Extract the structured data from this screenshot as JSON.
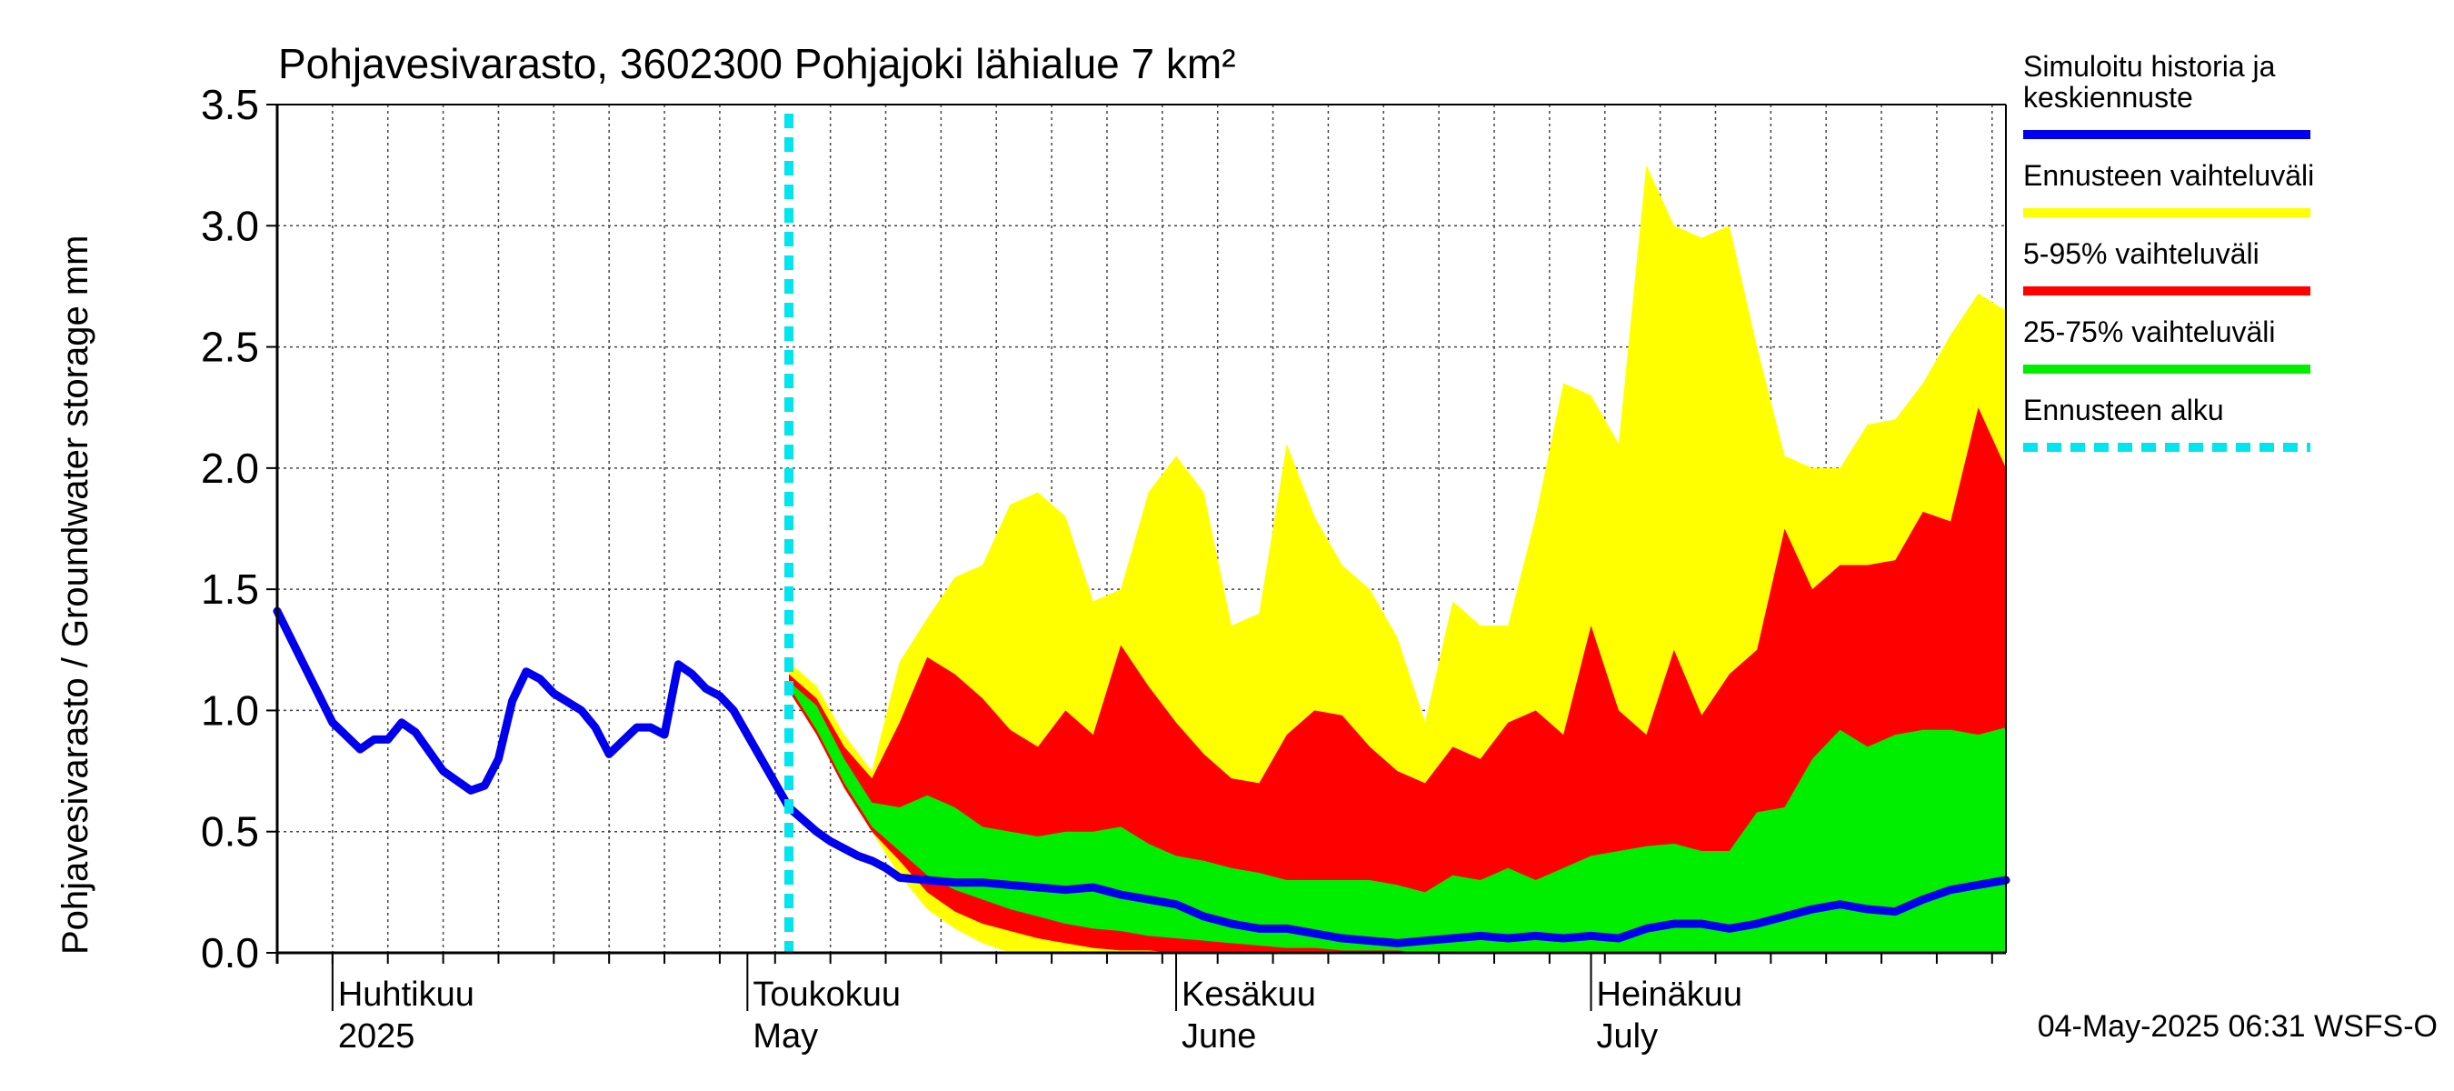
{
  "chart_data": {
    "type": "area",
    "title": "Pohjavesivarasto, 3602300 Pohjajoki lähialue 7 km²",
    "ylabel": "Pohjavesivarasto / Groundwater storage   mm",
    "xlim": [
      "2025-03-28",
      "2025-07-31"
    ],
    "ylim": [
      0,
      3.5
    ],
    "yticks": [
      "0.0",
      "0.5",
      "1.0",
      "1.5",
      "2.0",
      "2.5",
      "3.0",
      "3.5"
    ],
    "month_labels": [
      {
        "fi": "Huhtikuu",
        "en": "2025",
        "date": "2025-04-01"
      },
      {
        "fi": "Toukokuu",
        "en": "May",
        "date": "2025-05-01"
      },
      {
        "fi": "Kesäkuu",
        "en": "June",
        "date": "2025-06-01"
      },
      {
        "fi": "Heinäkuu",
        "en": "July",
        "date": "2025-07-01"
      }
    ],
    "forecast_start": "2025-05-04",
    "grid": true,
    "legend_position": "right",
    "timestamp": "04-May-2025 06:31 WSFS-O",
    "colors": {
      "history": "#0000ee",
      "full_range": "#ffff00",
      "p5_95": "#ff0000",
      "p25_75": "#00ee00",
      "forecast_start": "#00e5ee"
    },
    "legend": [
      {
        "label": "Simuloitu historia ja keskiennuste",
        "lines": [
          "Simuloitu historia ja",
          "keskiennuste"
        ],
        "color": "#0000ee",
        "style": "solid"
      },
      {
        "label": "Ennusteen vaihteluväli",
        "lines": [
          "Ennusteen vaihteluväli"
        ],
        "color": "#ffff00",
        "style": "solid"
      },
      {
        "label": "5-95% vaihteluväli",
        "lines": [
          "5-95% vaihteluväli"
        ],
        "color": "#ff0000",
        "style": "solid"
      },
      {
        "label": "25-75% vaihteluväli",
        "lines": [
          "25-75% vaihteluväli"
        ],
        "color": "#00ee00",
        "style": "solid"
      },
      {
        "label": "Ennusteen alku",
        "lines": [
          "Ennusteen alku"
        ],
        "color": "#00e5ee",
        "style": "dashed"
      }
    ],
    "series": [
      {
        "name": "Simuloitu historia ja keskiennuste",
        "x": [
          "2025-03-28",
          "2025-03-30",
          "2025-04-01",
          "2025-04-03",
          "2025-04-04",
          "2025-04-05",
          "2025-04-06",
          "2025-04-07",
          "2025-04-08",
          "2025-04-09",
          "2025-04-11",
          "2025-04-12",
          "2025-04-13",
          "2025-04-14",
          "2025-04-15",
          "2025-04-16",
          "2025-04-17",
          "2025-04-19",
          "2025-04-20",
          "2025-04-21",
          "2025-04-23",
          "2025-04-24",
          "2025-04-25",
          "2025-04-26",
          "2025-04-27",
          "2025-04-28",
          "2025-04-29",
          "2025-04-30",
          "2025-05-01",
          "2025-05-02",
          "2025-05-04",
          "2025-05-05",
          "2025-05-06",
          "2025-05-07",
          "2025-05-09",
          "2025-05-10",
          "2025-05-11",
          "2025-05-12",
          "2025-05-14",
          "2025-05-16",
          "2025-05-18",
          "2025-05-20",
          "2025-05-22",
          "2025-05-24",
          "2025-05-26",
          "2025-05-28",
          "2025-05-30",
          "2025-06-01",
          "2025-06-03",
          "2025-06-05",
          "2025-06-07",
          "2025-06-09",
          "2025-06-11",
          "2025-06-13",
          "2025-06-15",
          "2025-06-17",
          "2025-06-19",
          "2025-06-21",
          "2025-06-23",
          "2025-06-25",
          "2025-06-27",
          "2025-06-29",
          "2025-07-01",
          "2025-07-03",
          "2025-07-05",
          "2025-07-07",
          "2025-07-09",
          "2025-07-11",
          "2025-07-13",
          "2025-07-15",
          "2025-07-17",
          "2025-07-19",
          "2025-07-21",
          "2025-07-23",
          "2025-07-25",
          "2025-07-27",
          "2025-07-29",
          "2025-07-31"
        ],
        "y": [
          1.41,
          1.18,
          0.95,
          0.84,
          0.88,
          0.88,
          0.95,
          0.91,
          0.83,
          0.75,
          0.67,
          0.69,
          0.8,
          1.04,
          1.16,
          1.13,
          1.07,
          1.0,
          0.93,
          0.82,
          0.93,
          0.93,
          0.9,
          1.19,
          1.15,
          1.09,
          1.06,
          1.0,
          0.9,
          0.8,
          0.6,
          0.55,
          0.5,
          0.46,
          0.4,
          0.38,
          0.35,
          0.31,
          0.3,
          0.29,
          0.29,
          0.28,
          0.27,
          0.26,
          0.27,
          0.24,
          0.22,
          0.2,
          0.15,
          0.12,
          0.1,
          0.1,
          0.08,
          0.06,
          0.05,
          0.04,
          0.05,
          0.06,
          0.07,
          0.06,
          0.07,
          0.06,
          0.07,
          0.06,
          0.1,
          0.12,
          0.12,
          0.1,
          0.12,
          0.15,
          0.18,
          0.2,
          0.18,
          0.17,
          0.22,
          0.26,
          0.28,
          0.3
        ]
      }
    ],
    "bands": [
      {
        "name": "Ennusteen vaihteluväli",
        "x": [
          "2025-05-04",
          "2025-05-06",
          "2025-05-08",
          "2025-05-10",
          "2025-05-12",
          "2025-05-14",
          "2025-05-16",
          "2025-05-18",
          "2025-05-20",
          "2025-05-22",
          "2025-05-24",
          "2025-05-26",
          "2025-05-28",
          "2025-05-30",
          "2025-06-01",
          "2025-06-03",
          "2025-06-05",
          "2025-06-07",
          "2025-06-09",
          "2025-06-11",
          "2025-06-13",
          "2025-06-15",
          "2025-06-17",
          "2025-06-19",
          "2025-06-21",
          "2025-06-23",
          "2025-06-25",
          "2025-06-27",
          "2025-06-29",
          "2025-07-01",
          "2025-07-03",
          "2025-07-05",
          "2025-07-07",
          "2025-07-09",
          "2025-07-11",
          "2025-07-13",
          "2025-07-15",
          "2025-07-17",
          "2025-07-19",
          "2025-07-21",
          "2025-07-23",
          "2025-07-25",
          "2025-07-27",
          "2025-07-29",
          "2025-07-31"
        ],
        "low": [
          1.1,
          0.95,
          0.72,
          0.5,
          0.32,
          0.18,
          0.1,
          0.04,
          0.0,
          0.0,
          0.0,
          0.0,
          0.0,
          0.0,
          0.0,
          0.0,
          0.0,
          0.0,
          0.0,
          0.0,
          0.0,
          0.0,
          0.0,
          0.0,
          0.0,
          0.0,
          0.0,
          0.0,
          0.0,
          0.0,
          0.0,
          0.0,
          0.0,
          0.0,
          0.0,
          0.0,
          0.0,
          0.0,
          0.0,
          0.0,
          0.0,
          0.0,
          0.0,
          0.0,
          0.0
        ],
        "high": [
          1.2,
          1.1,
          0.9,
          0.75,
          1.2,
          1.38,
          1.55,
          1.6,
          1.85,
          1.9,
          1.8,
          1.45,
          1.5,
          1.9,
          2.05,
          1.9,
          1.35,
          1.4,
          2.1,
          1.8,
          1.6,
          1.5,
          1.3,
          0.95,
          1.45,
          1.35,
          1.35,
          1.8,
          2.35,
          2.3,
          2.1,
          3.25,
          3.0,
          2.95,
          3.0,
          2.5,
          2.05,
          2.0,
          2.0,
          2.18,
          2.2,
          2.35,
          2.55,
          2.72,
          2.65
        ]
      },
      {
        "name": "5-95% vaihteluväli",
        "x": [
          "2025-05-04",
          "2025-05-06",
          "2025-05-08",
          "2025-05-10",
          "2025-05-12",
          "2025-05-14",
          "2025-05-16",
          "2025-05-18",
          "2025-05-20",
          "2025-05-22",
          "2025-05-24",
          "2025-05-26",
          "2025-05-28",
          "2025-05-30",
          "2025-06-01",
          "2025-06-03",
          "2025-06-05",
          "2025-06-07",
          "2025-06-09",
          "2025-06-11",
          "2025-06-13",
          "2025-06-15",
          "2025-06-17",
          "2025-06-19",
          "2025-06-21",
          "2025-06-23",
          "2025-06-25",
          "2025-06-27",
          "2025-06-29",
          "2025-07-01",
          "2025-07-03",
          "2025-07-05",
          "2025-07-07",
          "2025-07-09",
          "2025-07-11",
          "2025-07-13",
          "2025-07-15",
          "2025-07-17",
          "2025-07-19",
          "2025-07-21",
          "2025-07-23",
          "2025-07-25",
          "2025-07-27",
          "2025-07-29",
          "2025-07-31"
        ],
        "low": [
          1.08,
          0.9,
          0.68,
          0.5,
          0.38,
          0.25,
          0.17,
          0.12,
          0.09,
          0.06,
          0.04,
          0.02,
          0.01,
          0.01,
          0.0,
          0.0,
          0.0,
          0.0,
          0.0,
          0.0,
          0.0,
          0.0,
          0.0,
          0.0,
          0.0,
          0.0,
          0.0,
          0.0,
          0.0,
          0.0,
          0.0,
          0.0,
          0.0,
          0.0,
          0.0,
          0.0,
          0.0,
          0.0,
          0.0,
          0.0,
          0.0,
          0.0,
          0.0,
          0.0,
          0.0
        ]
      },
      {
        "name": "5-95% vaihteluväli (ylä)",
        "x": [
          "2025-05-04",
          "2025-05-06",
          "2025-05-08",
          "2025-05-10",
          "2025-05-12",
          "2025-05-14",
          "2025-05-16",
          "2025-05-18",
          "2025-05-20",
          "2025-05-22",
          "2025-05-24",
          "2025-05-26",
          "2025-05-28",
          "2025-05-30",
          "2025-06-01",
          "2025-06-03",
          "2025-06-05",
          "2025-06-07",
          "2025-06-09",
          "2025-06-11",
          "2025-06-13",
          "2025-06-15",
          "2025-06-17",
          "2025-06-19",
          "2025-06-21",
          "2025-06-23",
          "2025-06-25",
          "2025-06-27",
          "2025-06-29",
          "2025-07-01",
          "2025-07-03",
          "2025-07-05",
          "2025-07-07",
          "2025-07-09",
          "2025-07-11",
          "2025-07-13",
          "2025-07-15",
          "2025-07-17",
          "2025-07-19",
          "2025-07-21",
          "2025-07-23",
          "2025-07-25",
          "2025-07-27",
          "2025-07-29",
          "2025-07-31"
        ],
        "high": [
          1.15,
          1.05,
          0.85,
          0.72,
          0.95,
          1.22,
          1.15,
          1.05,
          0.92,
          0.85,
          1.0,
          0.9,
          1.27,
          1.1,
          0.95,
          0.82,
          0.72,
          0.7,
          0.9,
          1.0,
          0.98,
          0.85,
          0.75,
          0.7,
          0.85,
          0.8,
          0.95,
          1.0,
          0.9,
          1.35,
          1.0,
          0.9,
          1.25,
          0.98,
          1.15,
          1.25,
          1.75,
          1.5,
          1.6,
          1.6,
          1.62,
          1.82,
          1.78,
          2.25,
          2.0
        ]
      },
      {
        "name": "25-75% vaihteluväli",
        "x": [
          "2025-05-04",
          "2025-05-06",
          "2025-05-08",
          "2025-05-10",
          "2025-05-12",
          "2025-05-14",
          "2025-05-16",
          "2025-05-18",
          "2025-05-20",
          "2025-05-22",
          "2025-05-24",
          "2025-05-26",
          "2025-05-28",
          "2025-05-30",
          "2025-06-01",
          "2025-06-03",
          "2025-06-05",
          "2025-06-07",
          "2025-06-09",
          "2025-06-11",
          "2025-06-13",
          "2025-06-15",
          "2025-06-17",
          "2025-06-19",
          "2025-06-21",
          "2025-06-23",
          "2025-06-25",
          "2025-06-27",
          "2025-06-29",
          "2025-07-01",
          "2025-07-03",
          "2025-07-05",
          "2025-07-07",
          "2025-07-09",
          "2025-07-11",
          "2025-07-13",
          "2025-07-15",
          "2025-07-17",
          "2025-07-19",
          "2025-07-21",
          "2025-07-23",
          "2025-07-25",
          "2025-07-27",
          "2025-07-29",
          "2025-07-31"
        ],
        "low": [
          1.1,
          0.92,
          0.7,
          0.52,
          0.42,
          0.32,
          0.26,
          0.22,
          0.18,
          0.15,
          0.12,
          0.1,
          0.09,
          0.07,
          0.06,
          0.05,
          0.04,
          0.03,
          0.02,
          0.02,
          0.01,
          0.01,
          0.01,
          0.0,
          0.0,
          0.0,
          0.0,
          0.0,
          0.0,
          0.0,
          0.0,
          0.0,
          0.0,
          0.0,
          0.0,
          0.0,
          0.0,
          0.0,
          0.0,
          0.0,
          0.0,
          0.0,
          0.0,
          0.0,
          0.0
        ],
        "high": [
          1.12,
          1.02,
          0.8,
          0.62,
          0.6,
          0.65,
          0.6,
          0.52,
          0.5,
          0.48,
          0.5,
          0.5,
          0.52,
          0.45,
          0.4,
          0.38,
          0.35,
          0.33,
          0.3,
          0.3,
          0.3,
          0.3,
          0.28,
          0.25,
          0.32,
          0.3,
          0.35,
          0.3,
          0.35,
          0.4,
          0.42,
          0.44,
          0.45,
          0.42,
          0.42,
          0.58,
          0.6,
          0.8,
          0.92,
          0.85,
          0.9,
          0.92,
          0.92,
          0.9,
          0.93
        ]
      }
    ]
  }
}
